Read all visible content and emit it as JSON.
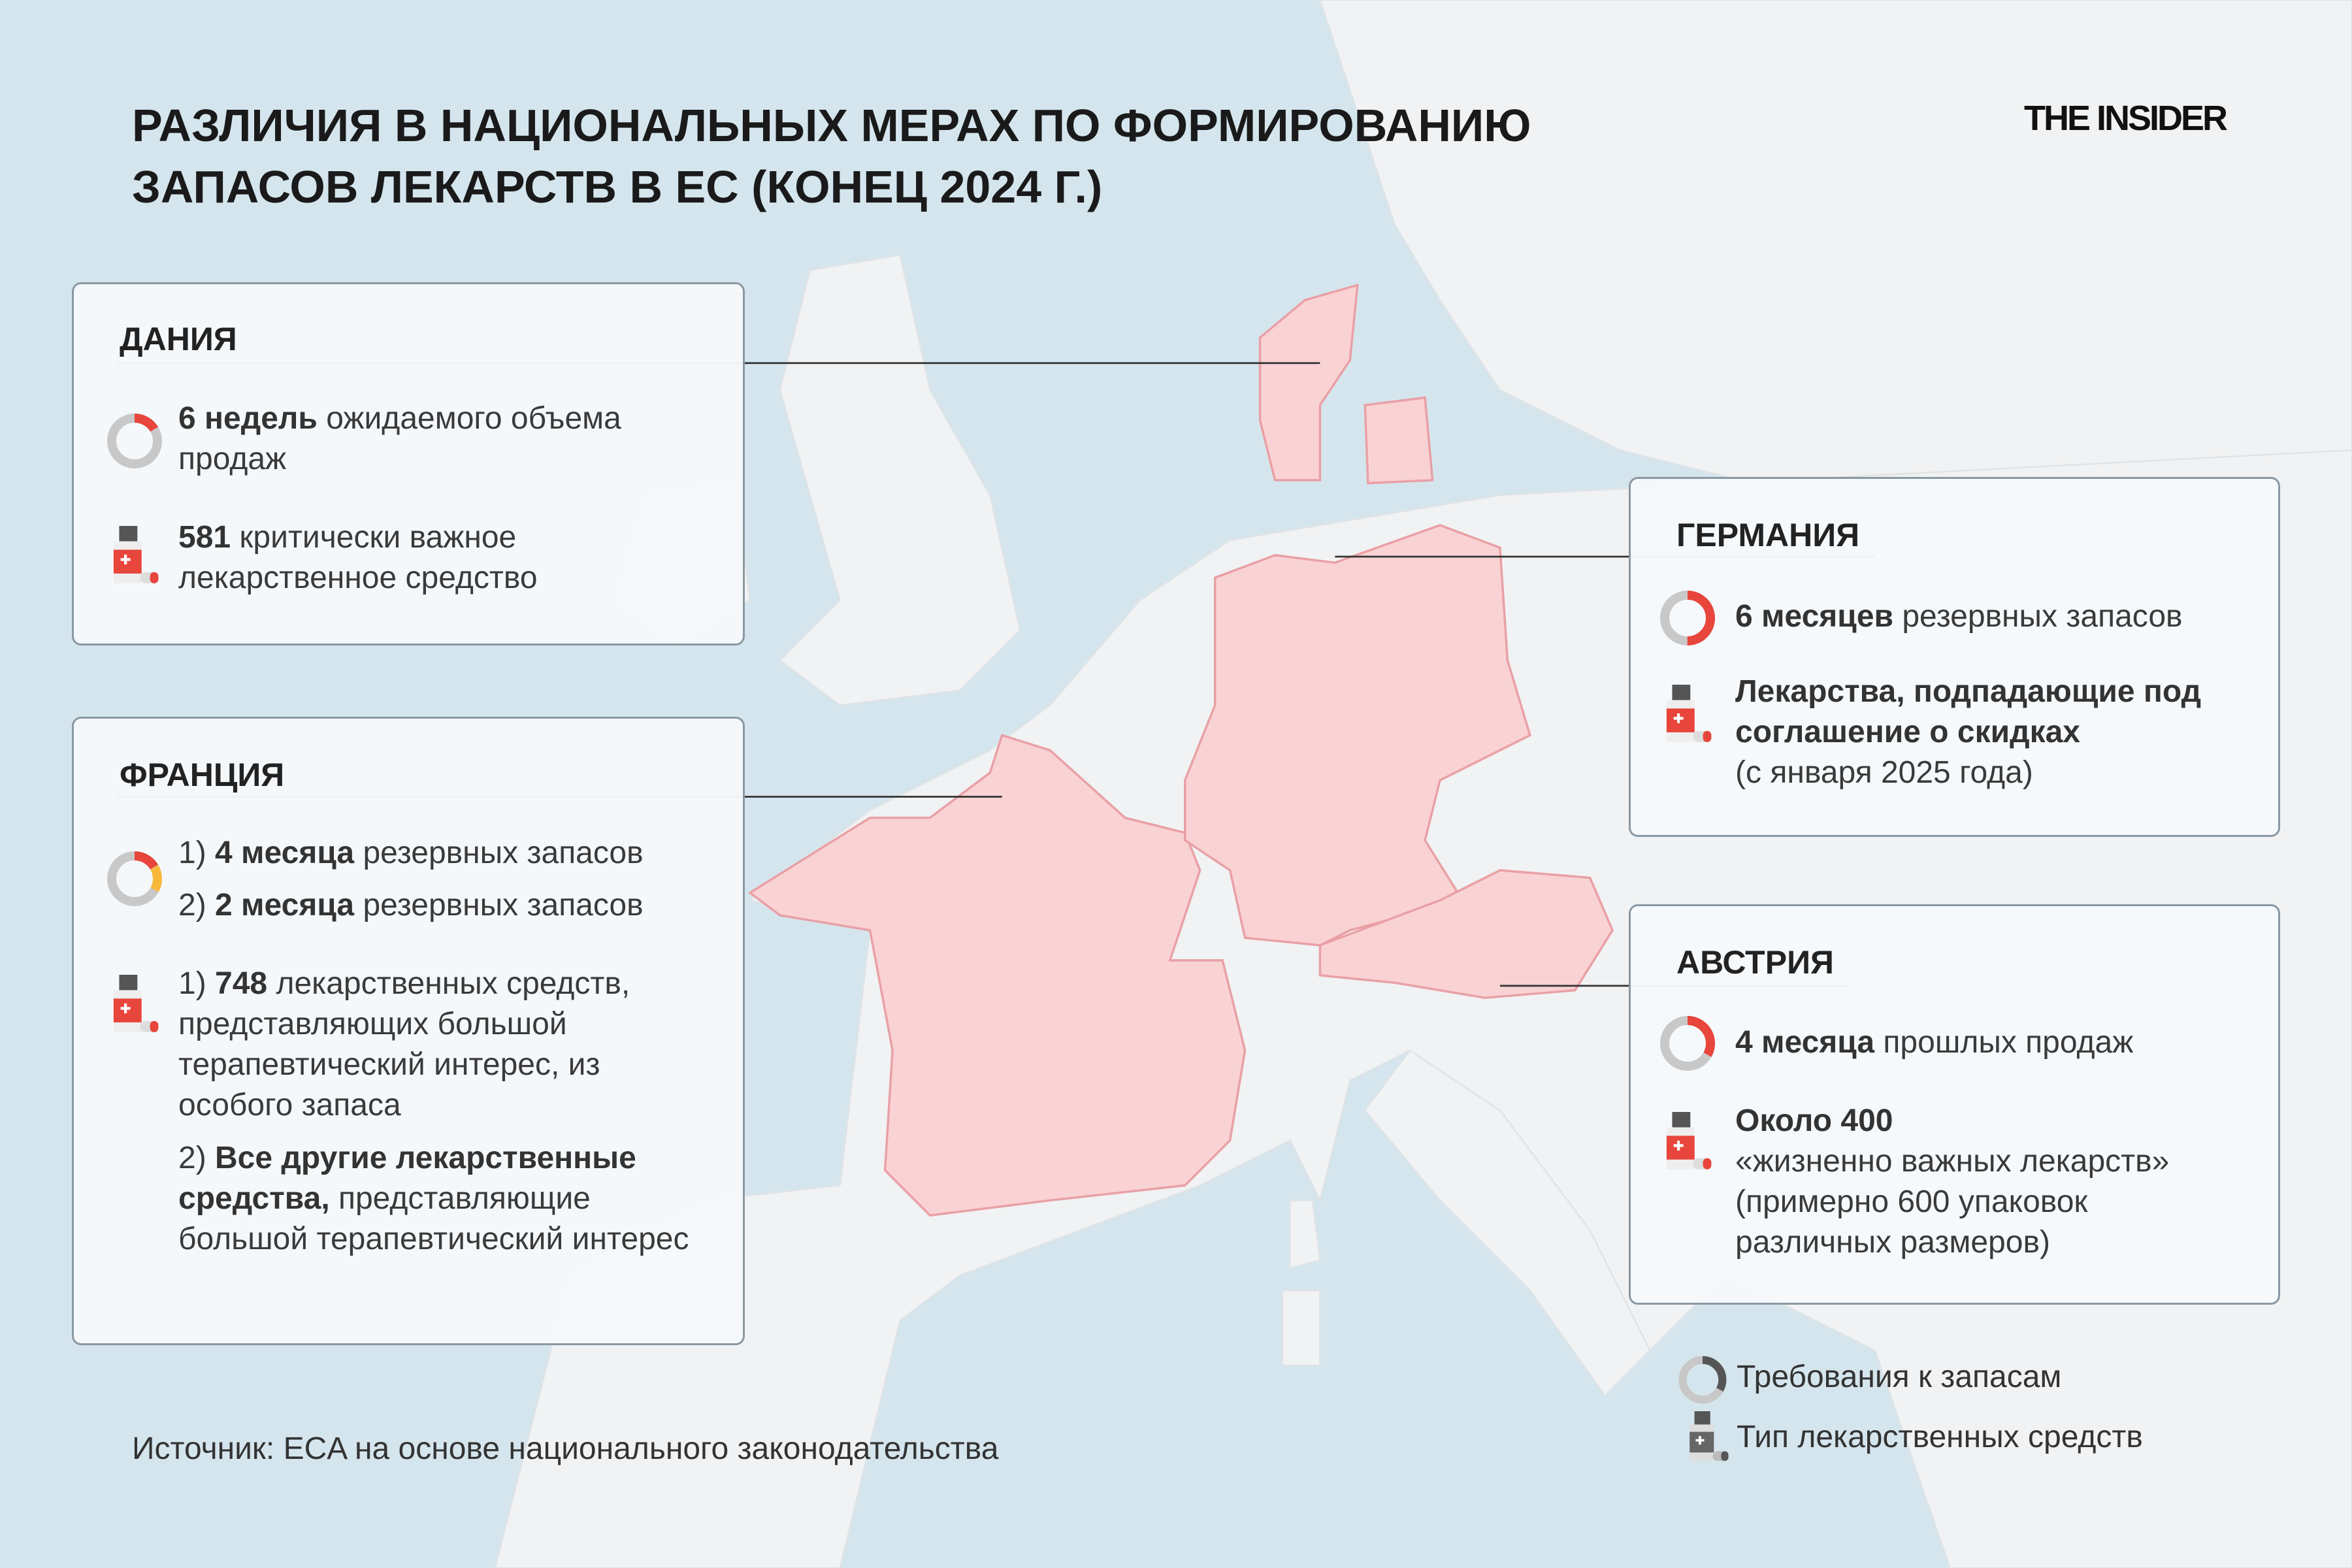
{
  "title": [
    "РАЗЛИЧИЯ В НАЦИОНАЛЬНЫХ МЕРАХ ПО ФОРМИРОВАНИЮ",
    "ЗАПАСОВ ЛЕКАРСТВ В ЕС (КОНЕЦ 2024 Г.)"
  ],
  "logo": "THE INSIDER",
  "colors": {
    "sea": "#d5e5ed",
    "land": "#f1f2f3",
    "highlight": "#f9d2d4",
    "accent_red": "#e8453c",
    "accent_yellow": "#f8b83a",
    "ring_gray": "#c8c8c8"
  },
  "denmark": {
    "heading": "ДАНИЯ",
    "stock_bold": "6 недель",
    "stock_rest": " ожидаемого объема продаж",
    "drug_bold": "581",
    "drug_rest": " критически важное лекарственное средство"
  },
  "france": {
    "heading": "ФРАНЦИЯ",
    "stock1_pre": "1) ",
    "stock1_bold": "4 месяца",
    "stock1_rest": " резервных запасов",
    "stock2_pre": "2) ",
    "stock2_bold": "2 месяца",
    "stock2_rest": " резервных запасов",
    "drug1_pre": "1) ",
    "drug1_bold": "748",
    "drug1_rest": " лекарственных средств, представляющих большой терапевтический интерес, из особого запаса",
    "drug2_pre": "2) ",
    "drug2_bold": "Все другие лекарственные средства,",
    "drug2_rest": " представляющие большой терапевтический интерес"
  },
  "germany": {
    "heading": "ГЕРМАНИЯ",
    "stock_bold": "6 месяцев",
    "stock_rest": " резервных запасов",
    "drug_bold": "Лекарства, подпадающие под соглашение о скидках",
    "drug_rest": "(с января 2025 года)"
  },
  "austria": {
    "heading": "АВСТРИЯ",
    "stock_bold": "4 месяца",
    "stock_rest": " прошлых продаж",
    "drug_bold": "Около 400",
    "drug_rest": "«жизненно важных лекарств» (примерно 600 упаковок различных размеров)"
  },
  "legend": {
    "stock": "Требования к запасам",
    "drug": "Тип лекарственных средств"
  },
  "source": "Источник: ECA на основе национального законодательства"
}
